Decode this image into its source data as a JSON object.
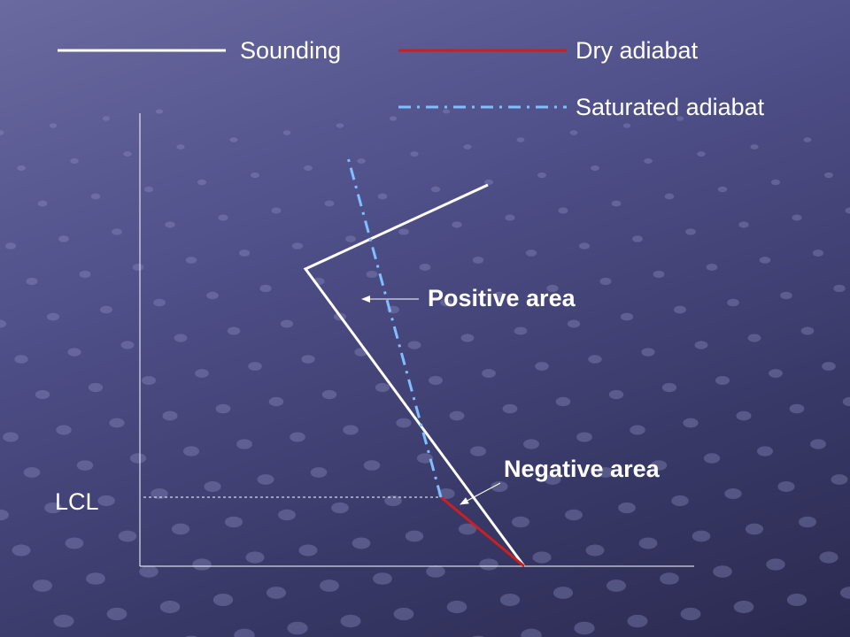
{
  "legend": {
    "sounding_label": "Sounding",
    "dry_adiabat_label": "Dry adiabat",
    "saturated_adiabat_label": "Saturated adiabat"
  },
  "annotations": {
    "positive_area": "Positive area",
    "negative_area": "Negative area",
    "lcl": "LCL"
  },
  "colors": {
    "background": "#4e4e86",
    "sounding_line": "#ffffff",
    "dry_adiabat_line": "#cc1f1f",
    "saturated_adiabat_line": "#7fbfff",
    "text": "#ffffff"
  }
}
